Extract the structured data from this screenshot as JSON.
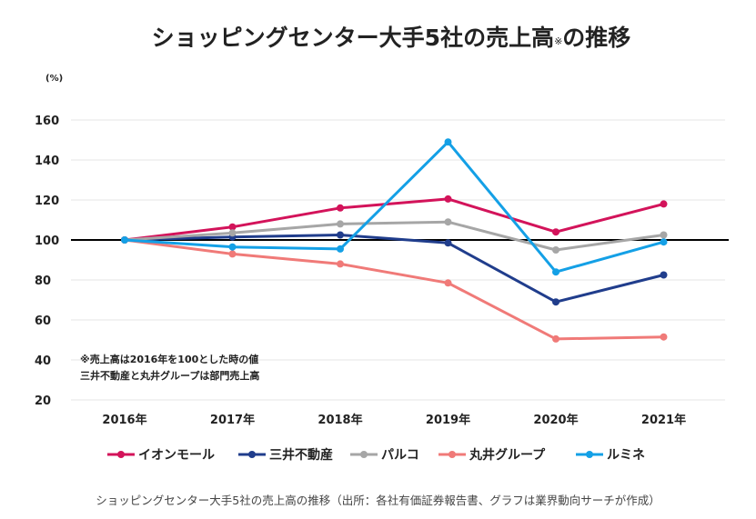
{
  "chart_data": {
    "type": "line",
    "title_main": "ショッピングセンター大手5社の売上高",
    "title_mark": "※",
    "title_suffix": "の推移",
    "y_unit": "(%)",
    "ylim": [
      20,
      160
    ],
    "yticks": [
      20,
      40,
      60,
      80,
      100,
      120,
      140,
      160
    ],
    "reference_line": 100,
    "grid": "horizontal",
    "legend_position": "bottom",
    "categories": [
      "2016年",
      "2017年",
      "2018年",
      "2019年",
      "2020年",
      "2021年"
    ],
    "series": [
      {
        "name": "イオンモール",
        "color": "#d3135a",
        "values": [
          100,
          106.5,
          116,
          120.5,
          104,
          118
        ]
      },
      {
        "name": "三井不動産",
        "color": "#203d8c",
        "values": [
          100,
          101.5,
          102.5,
          98.5,
          69,
          82.5
        ]
      },
      {
        "name": "パルコ",
        "color": "#a6a6a6",
        "values": [
          100,
          103.5,
          108,
          109,
          95,
          102.5
        ]
      },
      {
        "name": "丸井グループ",
        "color": "#f07a78",
        "values": [
          100,
          93,
          88,
          78.5,
          50.5,
          51.5
        ]
      },
      {
        "name": "ルミネ",
        "color": "#14a0e6",
        "values": [
          100,
          96.5,
          95.5,
          149,
          84,
          99
        ]
      }
    ],
    "notes": [
      "※売上高は2016年を100とした時の値",
      "三井不動産と丸井グループは部門売上高"
    ]
  },
  "caption": "ショッピングセンター大手5社の売上高の推移（出所：各社有価証券報告書、グラフは業界動向サーチが作成）"
}
